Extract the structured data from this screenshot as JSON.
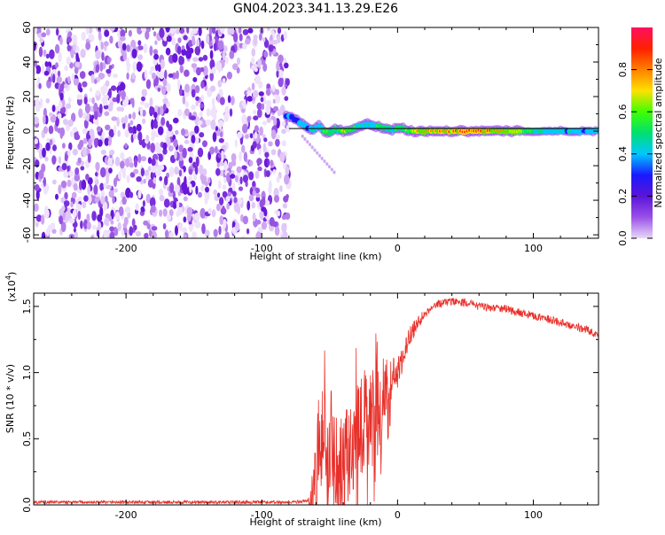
{
  "title": "GN04.2023.341.13.29.E26",
  "chart_data": [
    {
      "type": "heatmap",
      "xlabel": "Height of straight line (km)",
      "ylabel": "Frequency (Hz)",
      "xlim": [
        -268,
        148
      ],
      "ylim": [
        -62,
        60
      ],
      "x_ticks": [
        -200,
        -100,
        0,
        100
      ],
      "x_tick_labels": [
        "-200",
        "-100",
        "0",
        "100"
      ],
      "y_ticks": [
        -60,
        -40,
        -20,
        0,
        20,
        40,
        60
      ],
      "y_tick_labels": [
        "-60",
        "-40",
        "-20",
        "0",
        "20",
        "40",
        "60"
      ],
      "colorbar": {
        "label": "Normalized spectral amplitude",
        "range": [
          0,
          1
        ],
        "ticks": [
          0,
          0.2,
          0.4,
          0.6,
          0.8
        ],
        "tick_labels": [
          "0.0",
          "0.2",
          "0.4",
          "0.6",
          "0.8"
        ],
        "colors": [
          "#e8d8f8",
          "#9a50e8",
          "#5a14d8",
          "#1a1aff",
          "#00c8ff",
          "#00e070",
          "#40ff00",
          "#ffe000",
          "#ff8000",
          "#ff2000",
          "#ff1060"
        ]
      },
      "noise_region": {
        "x_range": [
          -268,
          -80
        ],
        "freq_range": [
          -62,
          60
        ]
      },
      "signal_track": [
        {
          "x": -82,
          "f": 9,
          "a": 0.3
        },
        {
          "x": -78,
          "f": 8,
          "a": 0.35
        },
        {
          "x": -74,
          "f": 6,
          "a": 0.3
        },
        {
          "x": -70,
          "f": 4,
          "a": 0.4
        },
        {
          "x": -66,
          "f": 2,
          "a": 0.35
        },
        {
          "x": -62,
          "f": 1,
          "a": 0.45
        },
        {
          "x": -58,
          "f": 3,
          "a": 0.4
        },
        {
          "x": -54,
          "f": 0,
          "a": 0.6
        },
        {
          "x": -50,
          "f": -1,
          "a": 0.55
        },
        {
          "x": -46,
          "f": 1,
          "a": 0.5
        },
        {
          "x": -40,
          "f": 0,
          "a": 0.7
        },
        {
          "x": -34,
          "f": 1,
          "a": 0.55
        },
        {
          "x": -28,
          "f": 3,
          "a": 0.45
        },
        {
          "x": -22,
          "f": 4,
          "a": 0.4
        },
        {
          "x": -16,
          "f": 3,
          "a": 0.5
        },
        {
          "x": -10,
          "f": 2,
          "a": 0.45
        },
        {
          "x": -4,
          "f": 1,
          "a": 0.5
        },
        {
          "x": 2,
          "f": 2,
          "a": 0.55
        },
        {
          "x": 10,
          "f": 0,
          "a": 0.7
        },
        {
          "x": 20,
          "f": 0,
          "a": 0.85
        },
        {
          "x": 40,
          "f": 0,
          "a": 0.8
        },
        {
          "x": 60,
          "f": 0,
          "a": 0.9
        },
        {
          "x": 80,
          "f": 0,
          "a": 0.75
        },
        {
          "x": 100,
          "f": 0,
          "a": 0.5
        },
        {
          "x": 120,
          "f": 0,
          "a": 0.4
        },
        {
          "x": 148,
          "f": 0,
          "a": 0.35
        }
      ],
      "reference_line_frequency": 1.5
    },
    {
      "type": "line",
      "xlabel": "Height of straight line (km)",
      "ylabel": "SNR (10 * v/v)",
      "y_scale_label": "(x10",
      "y_scale_exponent": "4",
      "xlim": [
        -268,
        148
      ],
      "ylim": [
        0,
        1.6
      ],
      "x_ticks": [
        -200,
        -100,
        0,
        100
      ],
      "x_tick_labels": [
        "-200",
        "-100",
        "0",
        "100"
      ],
      "y_ticks": [
        0,
        0.5,
        1.0,
        1.5
      ],
      "y_tick_labels": [
        "0.0",
        "0.5",
        "1.0",
        "1.5"
      ],
      "color": "#e8302a",
      "envelope": {
        "x": [
          -268,
          -200,
          -100,
          -80,
          -65,
          -62,
          -58,
          -55,
          -50,
          -45,
          -40,
          -30,
          -20,
          -10,
          -5,
          0,
          5,
          10,
          20,
          30,
          40,
          50,
          60,
          80,
          100,
          120,
          140,
          148
        ],
        "y": [
          0.02,
          0.02,
          0.02,
          0.02,
          0.03,
          0.05,
          0.35,
          0.6,
          0.3,
          0.35,
          0.3,
          0.55,
          0.65,
          0.75,
          0.85,
          1.0,
          1.15,
          1.3,
          1.45,
          1.52,
          1.54,
          1.53,
          1.5,
          1.48,
          1.43,
          1.38,
          1.32,
          1.29
        ]
      },
      "noise_amplitude": {
        "x": [
          -268,
          -66,
          -60,
          -10,
          0,
          20,
          148
        ],
        "y": [
          0.012,
          0.012,
          0.35,
          0.4,
          0.12,
          0.03,
          0.03
        ]
      }
    }
  ]
}
